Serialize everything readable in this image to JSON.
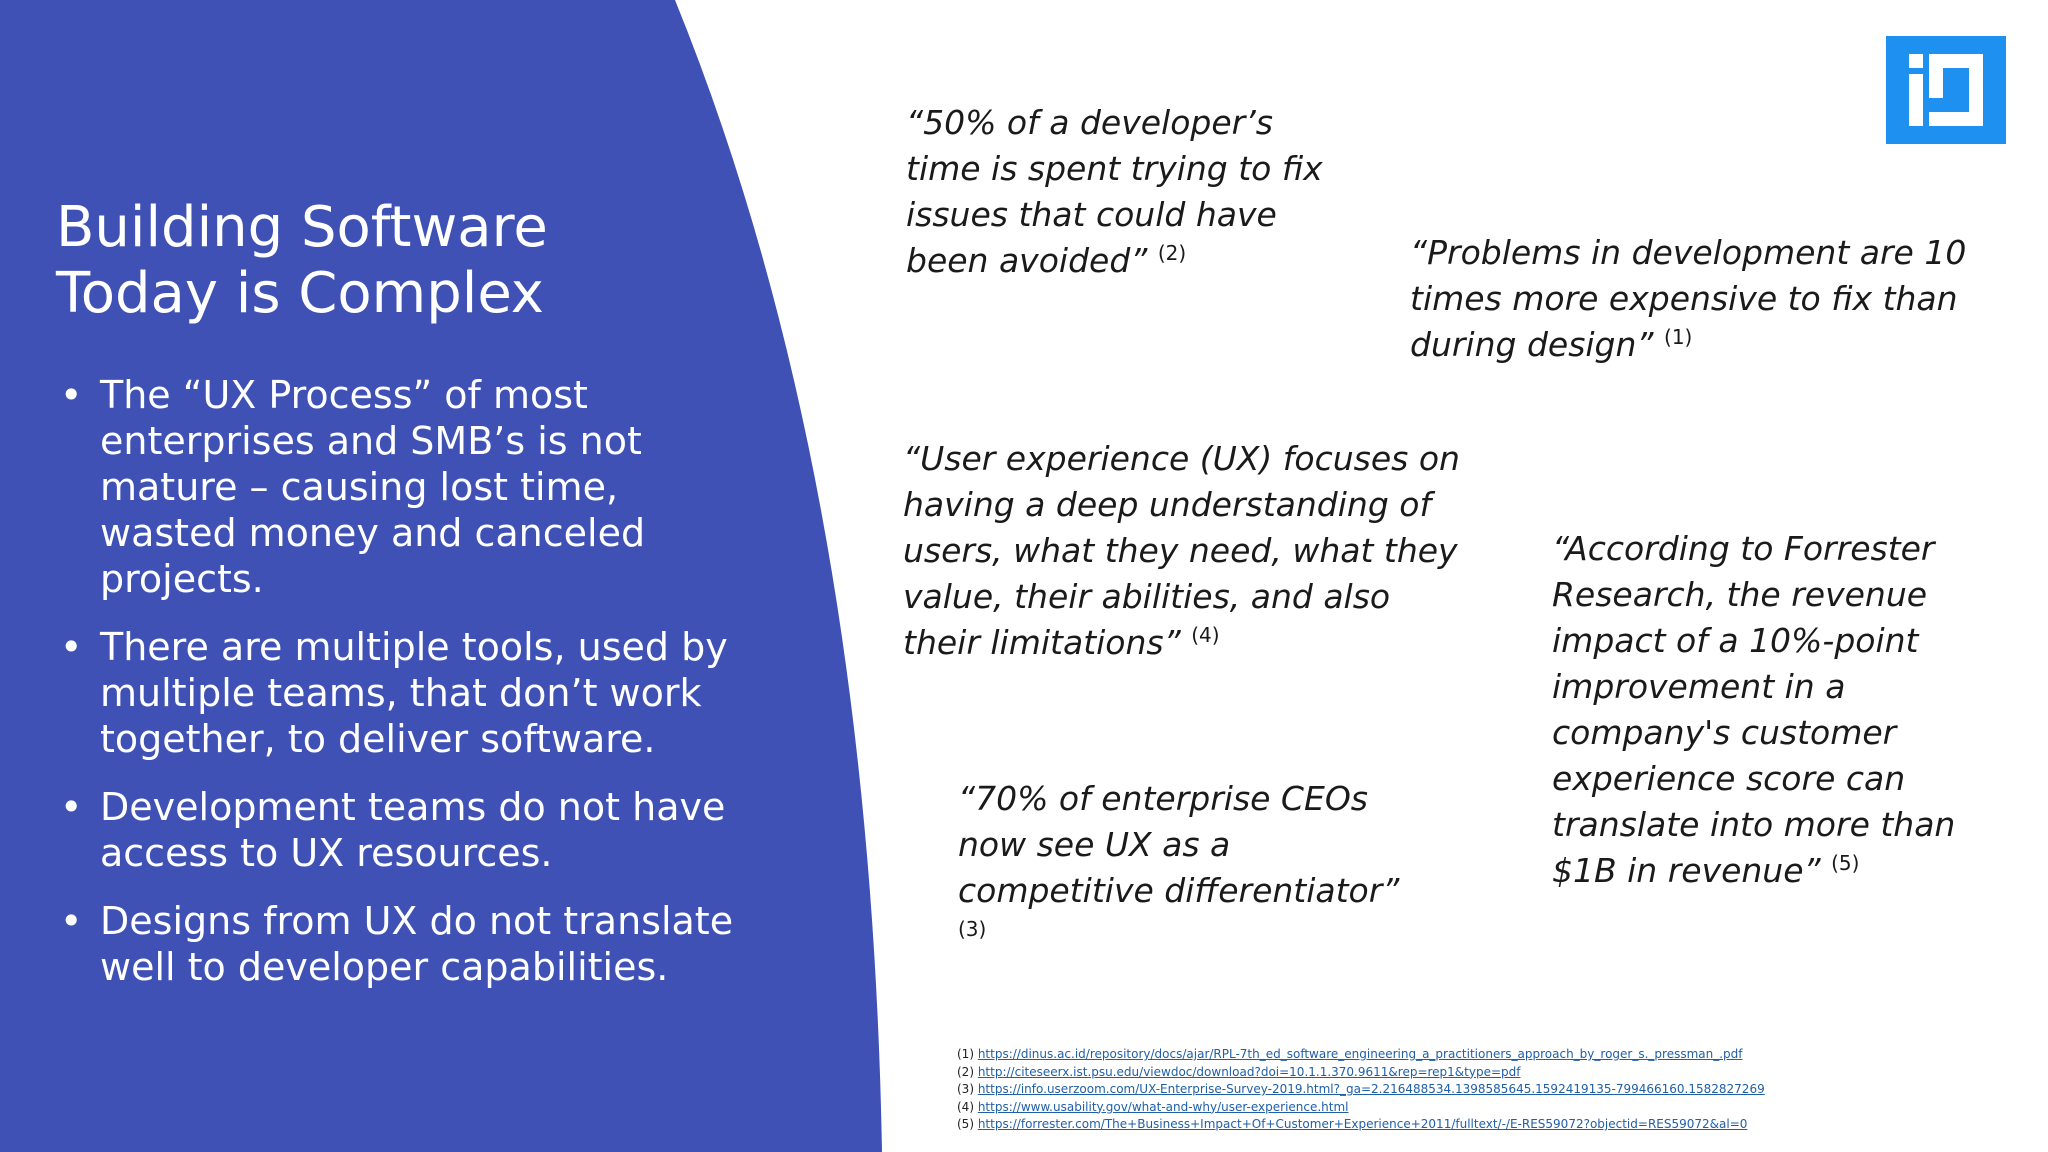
{
  "title": "Building Software Today is Complex",
  "colors": {
    "panel": "#3f51b5",
    "logo": "#1e90f0",
    "link": "#1f5fa8"
  },
  "logo_icon": "company-logo-icon",
  "bullets": [
    "The “UX Process” of most enterprises and SMB’s is not mature – causing lost time, wasted money and canceled projects.",
    "There are multiple tools, used by multiple teams, that don’t work together, to deliver software.",
    "Development teams do not have access to UX resources.",
    "Designs from UX do not translate well to developer capabilities."
  ],
  "quotes": [
    {
      "text": "“50% of a developer’s time is spent trying to fix issues that could have been avoided”",
      "ref": "(2)"
    },
    {
      "text": "“Problems in development are 10 times more expensive to fix than during design”",
      "ref": "(1)"
    },
    {
      "text": "“User experience (UX) focuses on having a deep understanding of users, what they need, what they value, their abilities, and also their limitations”",
      "ref": "(4)"
    },
    {
      "text": "“According to Forrester Research, the revenue impact of a 10%-point improvement in a company's customer experience score can translate into more than $1B in revenue”",
      "ref": "(5)"
    },
    {
      "text": "“70% of enterprise CEOs now see UX as a competitive differentiator”",
      "ref": "(3)"
    }
  ],
  "references": [
    {
      "num": "(1)",
      "url": "https://dinus.ac.id/repository/docs/ajar/RPL-7th_ed_software_engineering_a_practitioners_approach_by_roger_s._pressman_.pdf"
    },
    {
      "num": "(2)",
      "url": "http://citeseerx.ist.psu.edu/viewdoc/download?doi=10.1.1.370.9611&rep=rep1&type=pdf"
    },
    {
      "num": "(3)",
      "url": "https://info.userzoom.com/UX-Enterprise-Survey-2019.html?_ga=2.216488534.1398585645.1592419135-799466160.1582827269"
    },
    {
      "num": "(4)",
      "url": "https://www.usability.gov/what-and-why/user-experience.html"
    },
    {
      "num": "(5)",
      "url": "https://forrester.com/The+Business+Impact+Of+Customer+Experience+2011/fulltext/-/E-RES59072?objectid=RES59072&al=0"
    }
  ]
}
